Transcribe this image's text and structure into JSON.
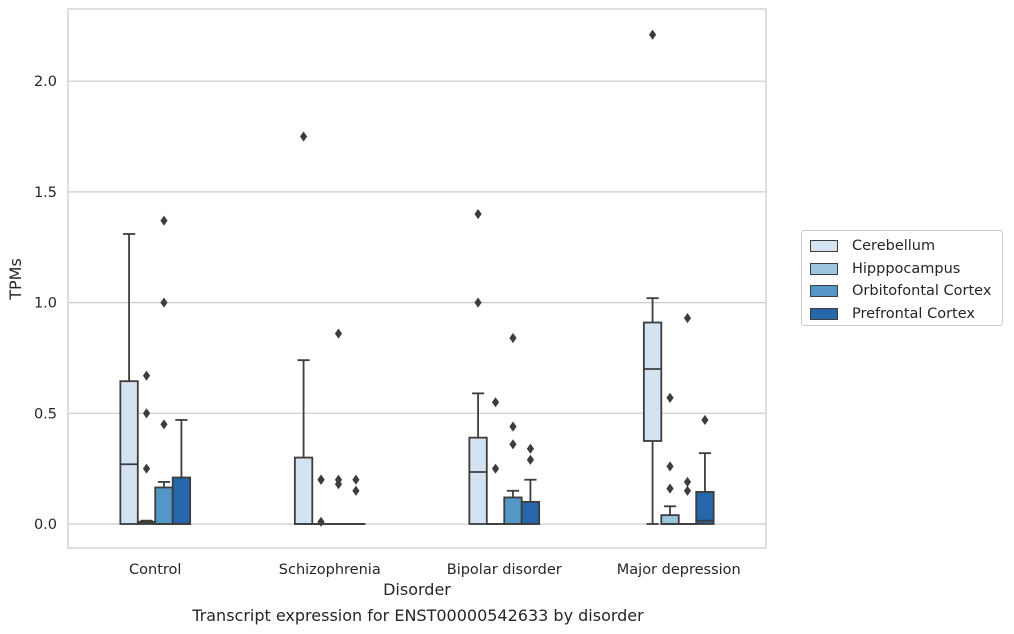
{
  "chart_data": {
    "type": "box",
    "caption": "Transcript expression for ENST00000542633 by disorder",
    "xlabel": "Disorder",
    "ylabel": "TPMs",
    "ylim": [
      -0.107,
      2.33
    ],
    "yticks": [
      0.0,
      0.5,
      1.0,
      1.5,
      2.0
    ],
    "ytick_labels": [
      "0.0",
      "0.5",
      "1.0",
      "1.5",
      "2.0"
    ],
    "grid": "horizontal",
    "legend_position": "right",
    "categories": [
      "Control",
      "Schizophrenia",
      "Bipolar disorder",
      "Major depression"
    ],
    "series": [
      {
        "name": "Cerebellum",
        "color": "#d4e3f1",
        "boxes": [
          {
            "min": 0.0,
            "q1": 0.0,
            "median": 0.27,
            "q3": 0.645,
            "max": 1.31,
            "outliers": []
          },
          {
            "min": 0.0,
            "q1": 0.0,
            "median": 0.0,
            "q3": 0.3,
            "max": 0.74,
            "outliers": [
              1.75
            ]
          },
          {
            "min": 0.0,
            "q1": 0.0,
            "median": 0.235,
            "q3": 0.39,
            "max": 0.59,
            "outliers": [
              1.0,
              1.4
            ]
          },
          {
            "min": 0.0,
            "q1": 0.375,
            "median": 0.7,
            "q3": 0.91,
            "max": 1.02,
            "outliers": [
              2.21
            ]
          }
        ]
      },
      {
        "name": "Hipppocampus",
        "color": "#9cc5df",
        "boxes": [
          {
            "min": 0.0,
            "q1": 0.0,
            "median": 0.005,
            "q3": 0.01,
            "max": 0.015,
            "outliers": [
              0.25,
              0.5,
              0.67
            ]
          },
          {
            "min": 0.0,
            "q1": 0.0,
            "median": 0.0,
            "q3": 0.0,
            "max": 0.0,
            "outliers": [
              0.01,
              0.2,
              0.2
            ]
          },
          {
            "min": 0.0,
            "q1": 0.0,
            "median": 0.0,
            "q3": 0.0,
            "max": 0.0,
            "outliers": [
              0.25,
              0.55
            ]
          },
          {
            "min": 0.0,
            "q1": 0.0,
            "median": 0.0,
            "q3": 0.04,
            "max": 0.08,
            "outliers": [
              0.16,
              0.26,
              0.57
            ]
          }
        ]
      },
      {
        "name": "Orbitofontal Cortex",
        "color": "#5497c6",
        "boxes": [
          {
            "min": 0.0,
            "q1": 0.0,
            "median": 0.0,
            "q3": 0.165,
            "max": 0.19,
            "outliers": [
              0.45,
              1.0,
              1.37
            ]
          },
          {
            "min": 0.0,
            "q1": 0.0,
            "median": 0.0,
            "q3": 0.0,
            "max": 0.0,
            "outliers": [
              0.18,
              0.2,
              0.86
            ]
          },
          {
            "min": 0.0,
            "q1": 0.0,
            "median": 0.0,
            "q3": 0.12,
            "max": 0.15,
            "outliers": [
              0.36,
              0.44,
              0.84
            ]
          },
          {
            "min": 0.0,
            "q1": 0.0,
            "median": 0.0,
            "q3": 0.0,
            "max": 0.0,
            "outliers": [
              0.15,
              0.19,
              0.93
            ]
          }
        ]
      },
      {
        "name": "Prefrontal Cortex",
        "color": "#2567aa",
        "boxes": [
          {
            "min": 0.0,
            "q1": 0.0,
            "median": 0.0,
            "q3": 0.21,
            "max": 0.47,
            "outliers": []
          },
          {
            "min": 0.0,
            "q1": 0.0,
            "median": 0.0,
            "q3": 0.0,
            "max": 0.0,
            "outliers": [
              0.15,
              0.2
            ]
          },
          {
            "min": 0.0,
            "q1": 0.0,
            "median": 0.0,
            "q3": 0.1,
            "max": 0.2,
            "outliers": [
              0.29,
              0.34
            ]
          },
          {
            "min": 0.0,
            "q1": 0.0,
            "median": 0.015,
            "q3": 0.145,
            "max": 0.32,
            "outliers": [
              0.47
            ]
          }
        ]
      }
    ]
  }
}
